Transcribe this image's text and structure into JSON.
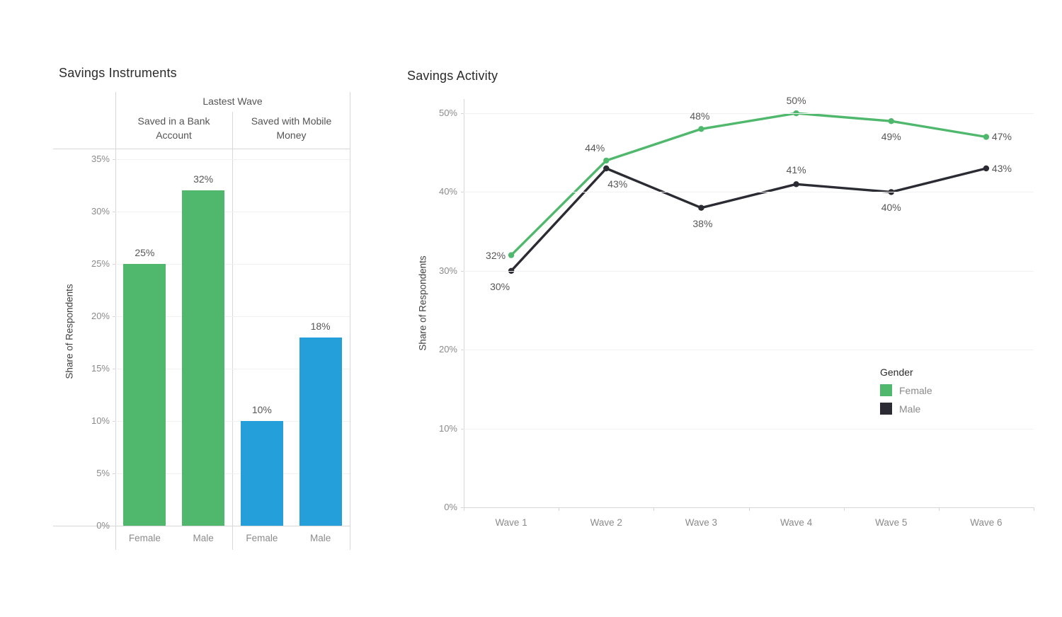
{
  "colors": {
    "background": "#ffffff",
    "grid_line": "#f1f1f1",
    "axis_line": "#d7d7d7",
    "tick_text": "#8b8b8b",
    "data_label_text": "#575757",
    "title_text": "#2b2b2b",
    "female_green": "#4FB86C",
    "male_dark": "#2B2B33",
    "mobile_money_blue": "#249FDA"
  },
  "chart_data": [
    {
      "type": "bar",
      "title": "Savings Instruments",
      "ylabel": "Share of Respondents",
      "ylim": [
        0,
        36
      ],
      "yticks": [
        0,
        5,
        10,
        15,
        20,
        25,
        30,
        35
      ],
      "grid": true,
      "panel_group_label": "Lastest Wave",
      "panels": [
        {
          "label": "Saved in a Bank Account",
          "categories": [
            "Female",
            "Male"
          ],
          "values": [
            25,
            32
          ],
          "color": "#4FB86C"
        },
        {
          "label": "Saved with Mobile Money",
          "categories": [
            "Female",
            "Male"
          ],
          "values": [
            10,
            18
          ],
          "color": "#249FDA"
        }
      ],
      "value_suffix": "%"
    },
    {
      "type": "line",
      "title": "Savings Activity",
      "ylabel": "Share of Respondents",
      "ylim": [
        0,
        51.8
      ],
      "yticks": [
        0,
        10,
        20,
        30,
        40,
        50
      ],
      "grid": true,
      "categories": [
        "Wave 1",
        "Wave 2",
        "Wave 3",
        "Wave 4",
        "Wave 5",
        "Wave 6"
      ],
      "series": [
        {
          "name": "Male",
          "color": "#2B2B33",
          "values": [
            30,
            43,
            38,
            41,
            40,
            43
          ],
          "label_positions": [
            "below",
            "below",
            "below",
            "above",
            "below",
            "right"
          ],
          "label_offsets": [
            [
              -16,
              4
            ],
            [
              16,
              4
            ],
            [
              2,
              4
            ],
            [
              0,
              -2
            ],
            [
              0,
              4
            ],
            [
              0,
              0
            ]
          ]
        },
        {
          "name": "Female",
          "color": "#4FB86C",
          "values": [
            32,
            44,
            48,
            50,
            49,
            47
          ],
          "label_positions": [
            "left",
            "above",
            "above",
            "above",
            "below",
            "right"
          ],
          "label_offsets": [
            [
              0,
              0
            ],
            [
              -16,
              0
            ],
            [
              -2,
              0
            ],
            [
              0,
              0
            ],
            [
              0,
              4
            ],
            [
              0,
              0
            ]
          ]
        }
      ],
      "legend": {
        "title": "Gender",
        "position": "right-middle",
        "order": [
          "Female",
          "Male"
        ]
      },
      "value_suffix": "%"
    }
  ]
}
